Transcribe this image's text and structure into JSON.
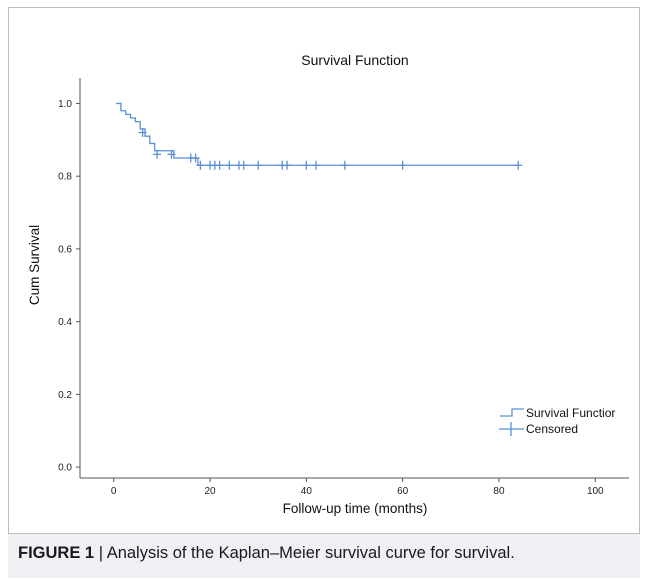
{
  "caption": {
    "label": "FIGURE 1",
    "separator": "|",
    "text": "Analysis of the Kaplan–Meier survival curve for survival."
  },
  "chart_data": {
    "type": "line",
    "title": "Survival Function",
    "xlabel": "Follow-up time (months)",
    "ylabel": "Cum Survival",
    "xlim": [
      -7,
      107
    ],
    "ylim": [
      -0.03,
      1.07
    ],
    "xticks": [
      0,
      20,
      40,
      60,
      80,
      100
    ],
    "yticks": [
      0.0,
      0.2,
      0.4,
      0.6,
      0.8,
      1.0
    ],
    "ytick_labels": [
      "0.0",
      "0.2",
      "0.4",
      "0.6",
      "0.8",
      "1.0"
    ],
    "grid": false,
    "legend_position": "bottom-right",
    "series_color": "#5b8fd6",
    "series": [
      {
        "name": "Survival Functior",
        "style": "step",
        "x": [
          0.5,
          1.5,
          2.5,
          3.5,
          4.5,
          5.5,
          6.5,
          7.5,
          8.5,
          12.5,
          17.5,
          84
        ],
        "y": [
          1.0,
          0.98,
          0.97,
          0.96,
          0.95,
          0.93,
          0.91,
          0.89,
          0.87,
          0.85,
          0.83,
          0.83
        ]
      },
      {
        "name": "Censored",
        "style": "markers",
        "x": [
          6,
          9,
          12,
          16,
          17,
          18,
          20,
          21,
          22,
          24,
          26,
          27,
          30,
          35,
          36,
          40,
          42,
          48,
          60,
          84
        ],
        "y": [
          0.92,
          0.86,
          0.86,
          0.85,
          0.85,
          0.83,
          0.83,
          0.83,
          0.83,
          0.83,
          0.83,
          0.83,
          0.83,
          0.83,
          0.83,
          0.83,
          0.83,
          0.83,
          0.83,
          0.83
        ]
      }
    ]
  }
}
